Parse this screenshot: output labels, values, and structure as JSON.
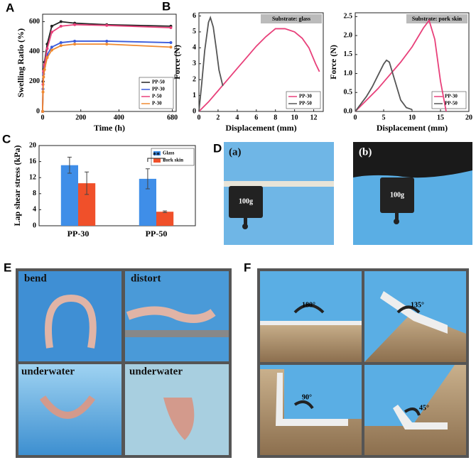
{
  "chart_data": [
    {
      "panel": "A",
      "type": "line",
      "xlabel": "Time (h)",
      "ylabel": "Swelling Ratio (%)",
      "x": [
        0,
        2,
        5,
        10,
        24,
        48,
        96,
        168,
        336,
        672
      ],
      "xlim": [
        0,
        700
      ],
      "xticks": [
        0,
        200,
        400,
        680
      ],
      "ylim": [
        0,
        650
      ],
      "yticks": [
        0,
        200,
        400,
        600
      ],
      "markers": true,
      "legend": "lower right",
      "series": [
        {
          "name": "PP-50",
          "color": "#222222",
          "values": [
            0,
            200,
            280,
            330,
            450,
            570,
            600,
            590,
            580,
            570
          ]
        },
        {
          "name": "PP-30",
          "color": "#3b5bdb",
          "values": [
            0,
            150,
            250,
            300,
            380,
            430,
            460,
            470,
            470,
            460
          ]
        },
        {
          "name": "P-50",
          "color": "#e8407a",
          "values": [
            0,
            180,
            270,
            310,
            420,
            530,
            570,
            580,
            575,
            560
          ]
        },
        {
          "name": "P-30",
          "color": "#f08a30",
          "values": [
            0,
            130,
            230,
            280,
            360,
            410,
            440,
            450,
            450,
            430
          ]
        }
      ]
    },
    {
      "panel": "B",
      "type": "line",
      "xlabel": "Displacement (mm)",
      "ylabel": "Force (N)",
      "annotation": "Substrate: glass",
      "xlim": [
        0,
        13
      ],
      "xticks": [
        0,
        2,
        4,
        6,
        8,
        10,
        12
      ],
      "ylim": [
        0,
        6.2
      ],
      "yticks": [
        0,
        1,
        2,
        3,
        4,
        5,
        6
      ],
      "legend": "lower right",
      "series": [
        {
          "name": "PP-30",
          "color": "#e8407a",
          "x": [
            0,
            1,
            2,
            3,
            4,
            5,
            6,
            7,
            8,
            9,
            10,
            10.8,
            11.5,
            12.2,
            12.6
          ],
          "values": [
            0,
            0.6,
            1.3,
            2.0,
            2.7,
            3.4,
            4.1,
            4.7,
            5.2,
            5.2,
            5.0,
            4.6,
            4.0,
            3.0,
            2.5
          ]
        },
        {
          "name": "PP-50",
          "color": "#555555",
          "x": [
            0,
            0.3,
            0.6,
            1.0,
            1.2,
            1.5,
            1.8,
            2.1,
            2.5
          ],
          "values": [
            0,
            1.8,
            3.8,
            5.6,
            5.9,
            5.3,
            4.0,
            2.6,
            1.6
          ]
        }
      ]
    },
    {
      "type": "line",
      "xlabel": "Displacement (mm)",
      "ylabel": "Force (N)",
      "annotation": "Substrate: pork skin",
      "xlim": [
        0,
        20
      ],
      "xticks": [
        0,
        5,
        10,
        15,
        20
      ],
      "ylim": [
        0,
        2.6
      ],
      "yticks": [
        {
          "value": 0,
          "label": "0.0"
        },
        0.5,
        {
          "value": 1,
          "label": "1.0"
        },
        1.5,
        {
          "value": 2,
          "label": "2.0"
        },
        2.5
      ],
      "legend": "lower right",
      "series": [
        {
          "name": "PP-30",
          "color": "#e8407a",
          "x": [
            0,
            2,
            4,
            6,
            8,
            10,
            12,
            13,
            14,
            15,
            16
          ],
          "values": [
            0,
            0.3,
            0.6,
            0.95,
            1.3,
            1.7,
            2.2,
            2.4,
            1.9,
            0.8,
            0
          ]
        },
        {
          "name": "PP-50",
          "color": "#555555",
          "x": [
            0,
            1,
            2,
            3,
            4,
            5,
            5.5,
            6,
            7,
            8,
            9,
            10
          ],
          "values": [
            0,
            0.2,
            0.4,
            0.65,
            0.95,
            1.25,
            1.35,
            1.3,
            0.8,
            0.3,
            0.1,
            0.05
          ]
        }
      ]
    },
    {
      "panel": "C",
      "type": "bar",
      "ylabel": "Lap shear stress (kPa)",
      "categories": [
        "PP-30",
        "PP-50"
      ],
      "ylim": [
        0,
        20
      ],
      "yticks": [
        0,
        4,
        8,
        12,
        16,
        20
      ],
      "legend": "upper right",
      "annotation": "**",
      "series": [
        {
          "name": "Glass",
          "color": "#3f8ee8",
          "values": [
            15.1,
            11.7
          ],
          "errors": [
            2.0,
            2.5
          ]
        },
        {
          "name": "Pork skin",
          "color": "#f0502a",
          "values": [
            10.6,
            3.5
          ],
          "errors": [
            2.8,
            0.2
          ]
        }
      ]
    }
  ],
  "photos": {
    "D": {
      "panel": "D",
      "labels": [
        "(a)",
        "100g",
        "(b)",
        "100g"
      ]
    },
    "E": {
      "panel": "E",
      "labels": [
        "bend",
        "distort",
        "underwater",
        "underwater"
      ]
    },
    "F": {
      "panel": "F",
      "labels": [
        "180°",
        "135°",
        "90°",
        "45°"
      ]
    }
  }
}
